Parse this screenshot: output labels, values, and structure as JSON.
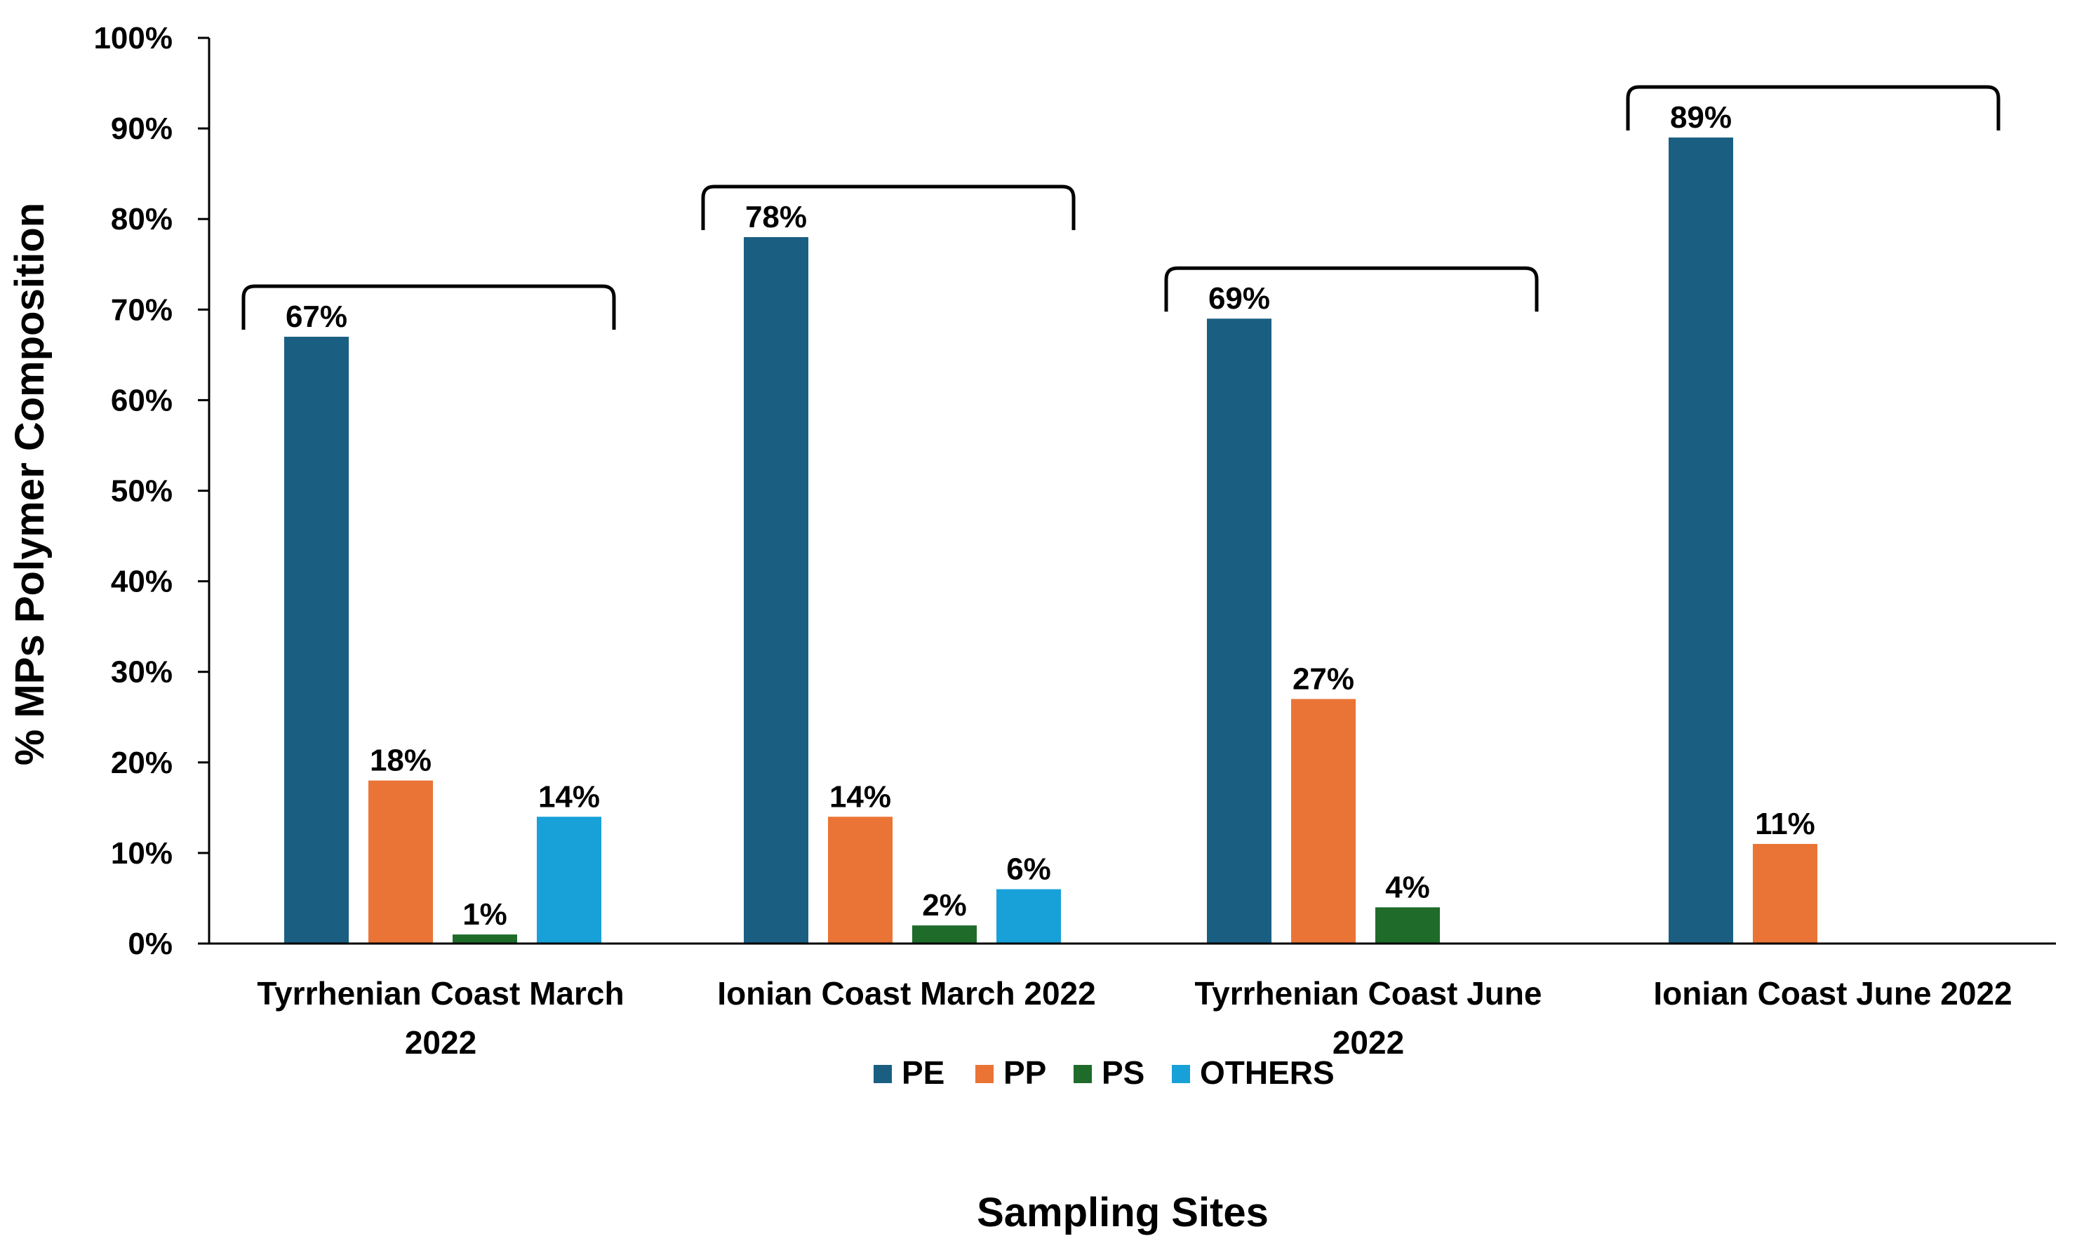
{
  "chart_data": {
    "type": "bar",
    "title": "",
    "xlabel": "Sampling Sites",
    "ylabel": "% MPs Polymer Composition",
    "ylim": [
      0,
      100
    ],
    "yticks": [
      0,
      10,
      20,
      30,
      40,
      50,
      60,
      70,
      80,
      90,
      100
    ],
    "ytick_labels": [
      "0%",
      "10%",
      "20%",
      "30%",
      "40%",
      "50%",
      "60%",
      "70%",
      "80%",
      "90%",
      "100%"
    ],
    "categories": [
      [
        "Tyrrhenian Coast March",
        "2022"
      ],
      [
        "Ionian Coast March 2022"
      ],
      [
        "Tyrrhenian Coast June",
        "2022"
      ],
      [
        "Ionian Coast June 2022"
      ]
    ],
    "series": [
      {
        "name": "PE",
        "color": "#1a5f82",
        "values": [
          67,
          78,
          69,
          89
        ],
        "labels": [
          "67%",
          "78%",
          "69%",
          "89%"
        ]
      },
      {
        "name": "PP",
        "color": "#ea7436",
        "values": [
          18,
          14,
          27,
          11
        ],
        "labels": [
          "18%",
          "14%",
          "27%",
          "11%"
        ]
      },
      {
        "name": "PS",
        "color": "#1f6b2a",
        "values": [
          1,
          2,
          4,
          null
        ],
        "labels": [
          "1%",
          "2%",
          "4%",
          ""
        ]
      },
      {
        "name": "OTHERS",
        "color": "#18a1d8",
        "values": [
          14,
          6,
          null,
          null
        ],
        "labels": [
          "14%",
          "6%",
          "",
          ""
        ]
      }
    ],
    "legend_position": "bottom-center",
    "grid": false,
    "group_brackets": true
  }
}
